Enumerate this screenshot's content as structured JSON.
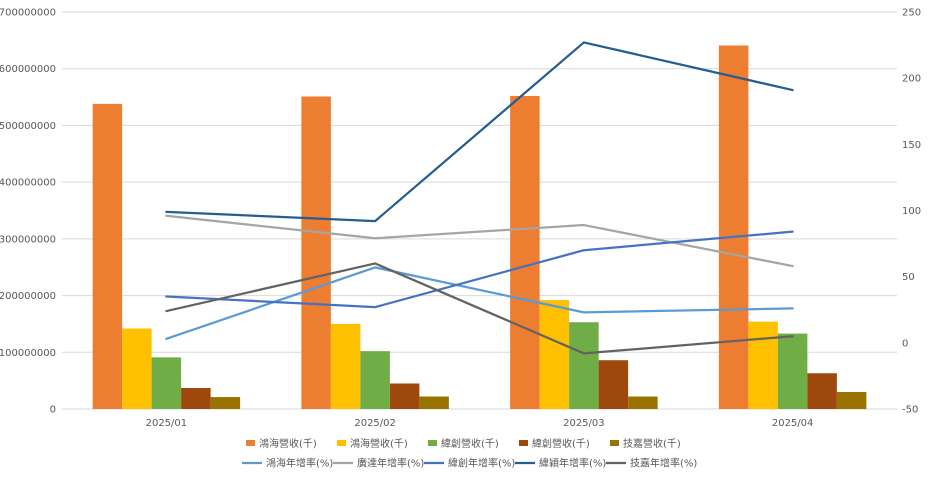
{
  "chart_data": {
    "type": "bar",
    "categories": [
      "2025/01",
      "2025/02",
      "2025/03",
      "2025/04"
    ],
    "bar_series": [
      {
        "name": "鴻海營收(千)",
        "color": "#ED7D31",
        "values": [
          538000000,
          551000000,
          552000000,
          641000000
        ]
      },
      {
        "name": "鴻海營收(千)",
        "color": "#FFC000",
        "values": [
          142000000,
          150000000,
          192000000,
          154000000
        ]
      },
      {
        "name": "緯創營收(千)",
        "color": "#70AD47",
        "values": [
          91000000,
          102000000,
          153000000,
          133000000
        ]
      },
      {
        "name": "緯創營收(千)",
        "color": "#9E480E",
        "values": [
          37000000,
          45000000,
          86000000,
          63000000
        ]
      },
      {
        "name": "技嘉營收(千)",
        "color": "#997300",
        "values": [
          21000000,
          22000000,
          22000000,
          30000000
        ]
      }
    ],
    "line_series": [
      {
        "name": "鴻海年增率(%)",
        "color": "#5B9BD5",
        "values": [
          3,
          57,
          23,
          26
        ]
      },
      {
        "name": "廣達年增率(%)",
        "color": "#A5A5A5",
        "values": [
          96,
          79,
          89,
          58
        ]
      },
      {
        "name": "緯創年增率(%)",
        "color": "#4472C4",
        "values": [
          35,
          27,
          70,
          84
        ]
      },
      {
        "name": "緯穎年增率(%)",
        "color": "#255E91",
        "values": [
          99,
          92,
          227,
          191
        ]
      },
      {
        "name": "技嘉年增率(%)",
        "color": "#636363",
        "values": [
          24,
          60,
          -8,
          5
        ]
      }
    ],
    "y_left": {
      "ylim": [
        0,
        700000000
      ],
      "ticks": [
        "0",
        "100000000",
        "200000000",
        "300000000",
        "400000000",
        "500000000",
        "600000000",
        "700000000"
      ]
    },
    "y_right": {
      "ylim": [
        -50,
        250
      ],
      "ticks": [
        "-50",
        "0",
        "50",
        "100",
        "150",
        "200",
        "250"
      ]
    },
    "grid": true,
    "legend_position": "bottom"
  }
}
